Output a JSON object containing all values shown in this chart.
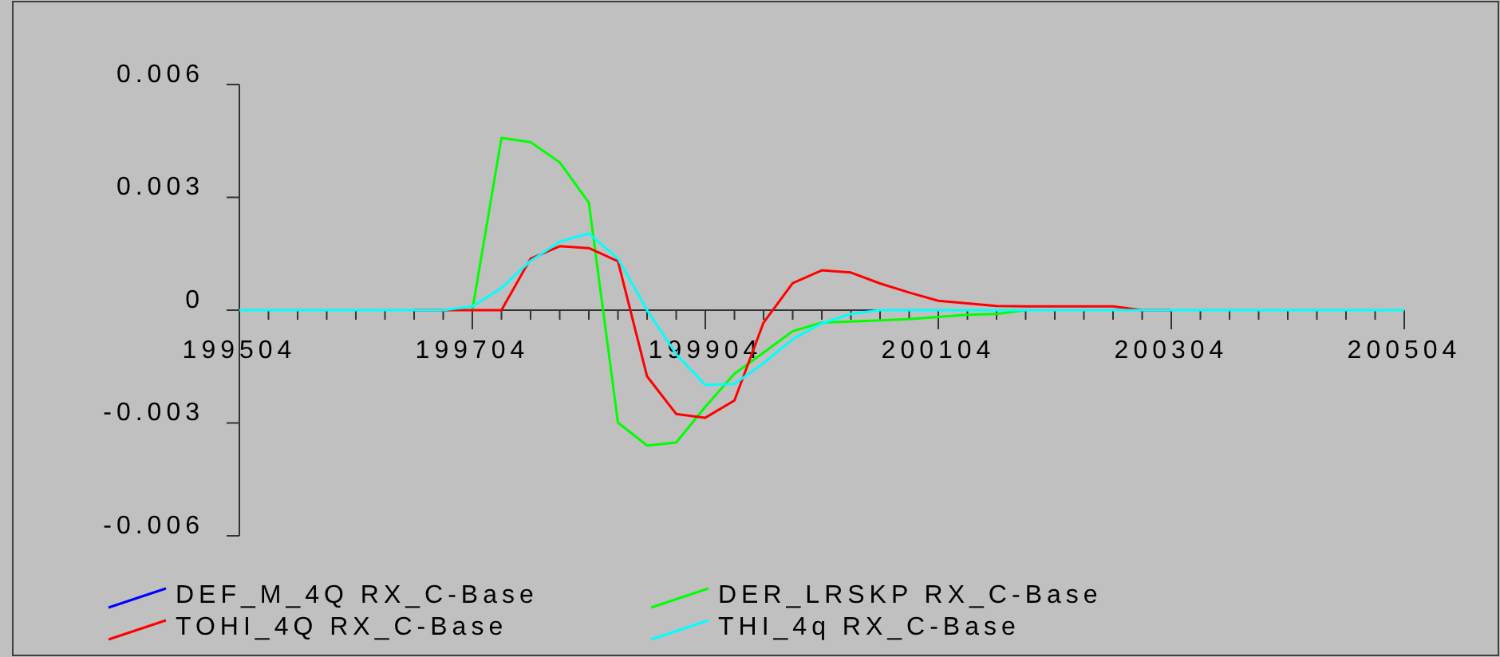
{
  "chart_data": {
    "type": "line",
    "categories": [
      "199504",
      null,
      null,
      null,
      null,
      null,
      null,
      null,
      "199704",
      null,
      null,
      null,
      null,
      null,
      null,
      null,
      "199904",
      null,
      null,
      null,
      null,
      null,
      null,
      null,
      "200104",
      null,
      null,
      null,
      null,
      null,
      null,
      null,
      "200304",
      null,
      null,
      null,
      null,
      null,
      null,
      null,
      "200504"
    ],
    "series": [
      {
        "name": "DEF_M_4Q RX_C-Base",
        "color": "#0000ff",
        "values": [
          null,
          null,
          null,
          null,
          null,
          null,
          null,
          null,
          null,
          null,
          null,
          null,
          null,
          null,
          null,
          null,
          null,
          null,
          null,
          null,
          null,
          null,
          null,
          null,
          null,
          null,
          null,
          null,
          null,
          null,
          null,
          null,
          null,
          null,
          null,
          null,
          null,
          null,
          null,
          null,
          null
        ]
      },
      {
        "name": "DER_LRSKP RX_C-Base",
        "color": "#00ff00",
        "values": [
          null,
          null,
          null,
          null,
          null,
          null,
          null,
          null,
          0,
          0.00458,
          0.00447,
          0.00393,
          0.00286,
          -0.00299,
          -0.0036,
          -0.00352,
          -0.00257,
          -0.00169,
          -0.00113,
          -0.00056,
          -0.00033,
          -0.0003,
          -0.00027,
          -0.00024,
          -0.00018,
          -0.00012,
          -0.0001,
          0,
          null,
          null,
          null,
          null,
          null,
          null,
          null,
          null,
          null,
          null,
          null,
          null,
          null
        ]
      },
      {
        "name": "TOHI_4Q RX_C-Base",
        "color": "#ff0000",
        "values": [
          null,
          null,
          null,
          null,
          null,
          null,
          0,
          0,
          0,
          0,
          0.00137,
          0.0017,
          0.00165,
          0.0013,
          -0.00176,
          -0.00276,
          -0.00286,
          -0.0024,
          -0.00033,
          0.00072,
          0.00106,
          0.001,
          0.00071,
          0.00047,
          0.00025,
          0.00018,
          0.00011,
          0.0001,
          0.0001,
          0.0001,
          0.0001,
          0,
          0,
          null,
          null,
          null,
          null,
          null,
          null,
          null,
          null
        ]
      },
      {
        "name": "THI_4q RX_C-Base",
        "color": "#00ffff",
        "values": [
          0,
          0,
          0,
          0,
          0,
          0,
          0,
          0,
          0.0001,
          0.00059,
          0.00131,
          0.00182,
          0.00204,
          0.00137,
          0,
          -0.00117,
          -0.00199,
          -0.00196,
          -0.00141,
          -0.00077,
          -0.00035,
          -0.0001,
          0,
          0,
          0,
          0,
          0,
          0,
          0,
          0,
          0,
          0,
          0,
          0,
          0,
          0,
          0,
          0,
          0,
          0,
          0
        ]
      }
    ],
    "ylim": [
      -0.006,
      0.006
    ],
    "yticks": [
      0.006,
      0.003,
      0,
      -0.003,
      -0.006
    ],
    "legend": "bottom",
    "grid": false
  }
}
